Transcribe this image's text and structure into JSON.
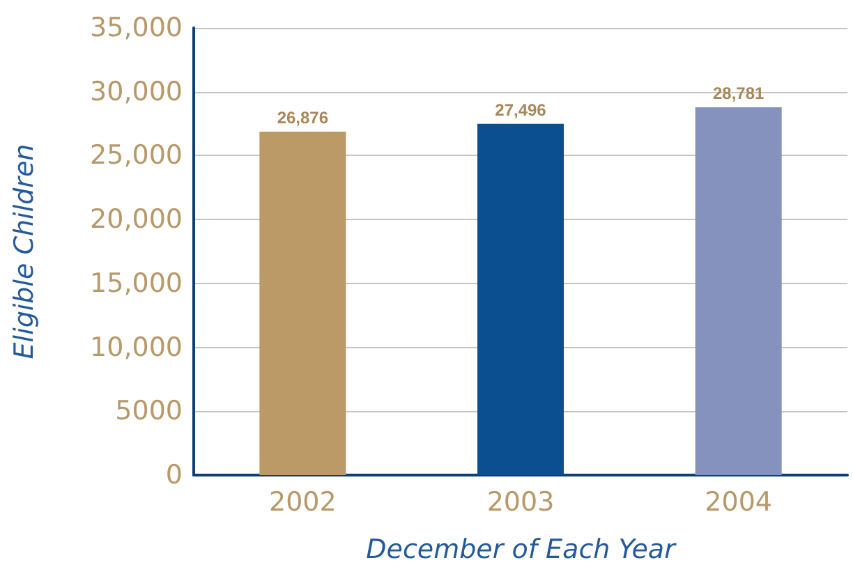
{
  "chart_data": {
    "type": "bar",
    "xlabel": "December of Each Year",
    "ylabel": "Eligible Children",
    "categories": [
      "2002",
      "2003",
      "2004"
    ],
    "values": [
      26876,
      27496,
      28781
    ],
    "colors": [
      "#bb9a68",
      "#0b4f90",
      "#8592be"
    ],
    "value_labels": [
      "26,876",
      "27,496",
      "28,781"
    ],
    "ylim": [
      0,
      35000
    ],
    "yticks": [
      0,
      5000,
      {
        "value": 10000,
        "label": "10,000"
      },
      {
        "value": 15000,
        "label": "15,000"
      },
      {
        "value": 20000,
        "label": "20,000"
      },
      {
        "value": 25000,
        "label": "25,000"
      },
      {
        "value": 30000,
        "label": "30,000"
      },
      {
        "value": 35000,
        "label": "35,000"
      }
    ],
    "grid": "y"
  }
}
